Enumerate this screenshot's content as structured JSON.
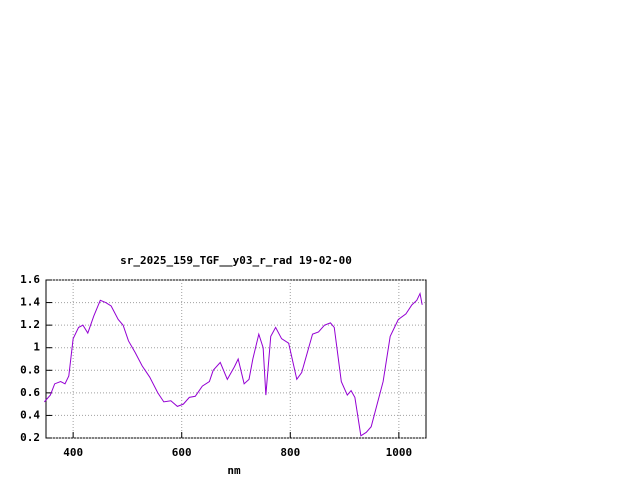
{
  "chart_data": {
    "type": "line",
    "title": "sr_2025_159_TGF__y03_r_rad 19-02-00",
    "x_label": "nm",
    "x": [
      347,
      358,
      366,
      377,
      385,
      392,
      400,
      410,
      418,
      427,
      438,
      450,
      460,
      470,
      483,
      492,
      502,
      514,
      527,
      541,
      556,
      567,
      580,
      592,
      603,
      614,
      625,
      638,
      651,
      658,
      671,
      684,
      697,
      704,
      715,
      724,
      731,
      742,
      750,
      755,
      764,
      773,
      784,
      797,
      812,
      821,
      841,
      852,
      863,
      874,
      881,
      894,
      905,
      912,
      919,
      930,
      940,
      949,
      960,
      971,
      984,
      999,
      1013,
      1024,
      1033,
      1039,
      1043
    ],
    "series": [
      {
        "color": "#9400d3",
        "values": [
          0.52,
          0.58,
          0.68,
          0.7,
          0.68,
          0.75,
          1.08,
          1.18,
          1.2,
          1.13,
          1.28,
          1.42,
          1.4,
          1.37,
          1.25,
          1.2,
          1.06,
          0.96,
          0.84,
          0.74,
          0.6,
          0.52,
          0.53,
          0.48,
          0.5,
          0.56,
          0.57,
          0.66,
          0.7,
          0.8,
          0.87,
          0.72,
          0.83,
          0.9,
          0.68,
          0.72,
          0.9,
          1.12,
          1.0,
          0.58,
          1.1,
          1.18,
          1.08,
          1.04,
          0.72,
          0.78,
          1.12,
          1.14,
          1.2,
          1.22,
          1.18,
          0.7,
          0.58,
          0.62,
          0.56,
          0.22,
          0.25,
          0.3,
          0.5,
          0.7,
          1.1,
          1.25,
          1.3,
          1.38,
          1.42,
          1.48,
          1.38
        ]
      }
    ],
    "xlim": [
      350,
      1050
    ],
    "xticks": [
      400,
      600,
      800,
      1000
    ],
    "ylim": [
      0.2,
      1.6
    ],
    "yticks": [
      0.2,
      0.4,
      0.6,
      0.8,
      1,
      1.2,
      1.4,
      1.6
    ],
    "grid": true
  }
}
